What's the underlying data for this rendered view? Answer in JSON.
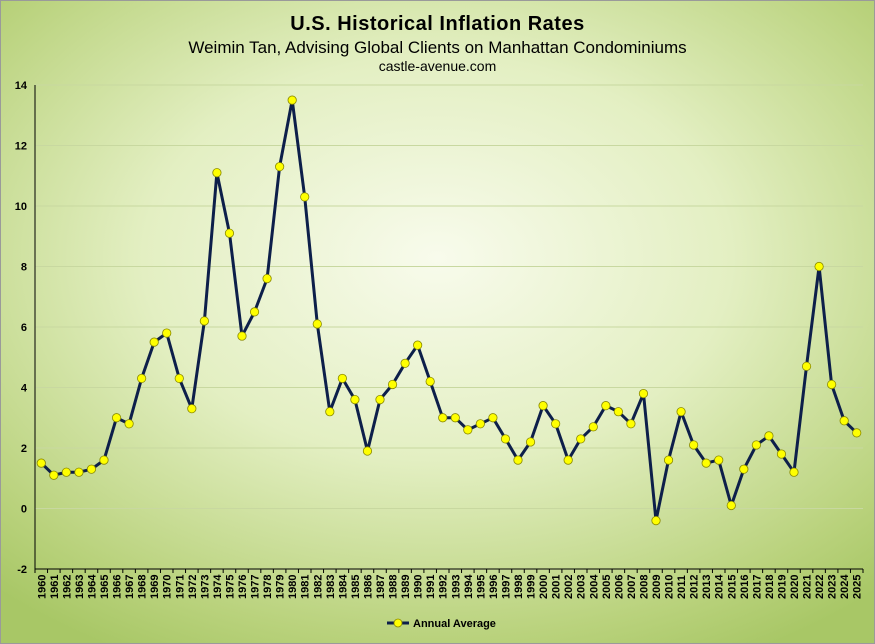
{
  "chart_data": {
    "type": "line",
    "title": "U.S. Historical Inflation Rates",
    "subtitle": "Weimin Tan, Advising Global Clients on Manhattan Condominiums",
    "source": "castle-avenue.com",
    "xlabel": "",
    "ylabel": "",
    "ylim": [
      -2,
      14
    ],
    "yticks": [
      -2,
      0,
      2,
      4,
      6,
      8,
      10,
      12,
      14
    ],
    "grid": true,
    "legend_position": "bottom",
    "categories": [
      "1960",
      "1961",
      "1962",
      "1963",
      "1964",
      "1965",
      "1966",
      "1967",
      "1968",
      "1969",
      "1970",
      "1971",
      "1972",
      "1973",
      "1974",
      "1975",
      "1976",
      "1977",
      "1978",
      "1979",
      "1980",
      "1981",
      "1982",
      "1983",
      "1984",
      "1985",
      "1986",
      "1987",
      "1988",
      "1989",
      "1990",
      "1991",
      "1992",
      "1993",
      "1994",
      "1995",
      "1996",
      "1997",
      "1998",
      "1999",
      "2000",
      "2001",
      "2002",
      "2003",
      "2004",
      "2005",
      "2006",
      "2007",
      "2008",
      "2009",
      "2010",
      "2011",
      "2012",
      "2013",
      "2014",
      "2015",
      "2016",
      "2017",
      "2018",
      "2019",
      "2020",
      "2021",
      "2022",
      "2023",
      "2024",
      "2025"
    ],
    "series": [
      {
        "name": "Annual Average",
        "line_color": "#0d1f4a",
        "marker_color": "#ffff00",
        "values": [
          1.5,
          1.1,
          1.2,
          1.2,
          1.3,
          1.6,
          3.0,
          2.8,
          4.3,
          5.5,
          5.8,
          4.3,
          3.3,
          6.2,
          11.1,
          9.1,
          5.7,
          6.5,
          7.6,
          11.3,
          13.5,
          10.3,
          6.1,
          3.2,
          4.3,
          3.6,
          1.9,
          3.6,
          4.1,
          4.8,
          5.4,
          4.2,
          3.0,
          3.0,
          2.6,
          2.8,
          3.0,
          2.3,
          1.6,
          2.2,
          3.4,
          2.8,
          1.6,
          2.3,
          2.7,
          3.4,
          3.2,
          2.8,
          3.8,
          -0.4,
          1.6,
          3.2,
          2.1,
          1.5,
          1.6,
          0.1,
          1.3,
          2.1,
          2.4,
          1.8,
          1.2,
          4.7,
          8.0,
          4.1,
          2.9,
          2.5
        ]
      }
    ]
  },
  "colors": {
    "gridline": "#c8d8a0",
    "axis": "#000000"
  }
}
